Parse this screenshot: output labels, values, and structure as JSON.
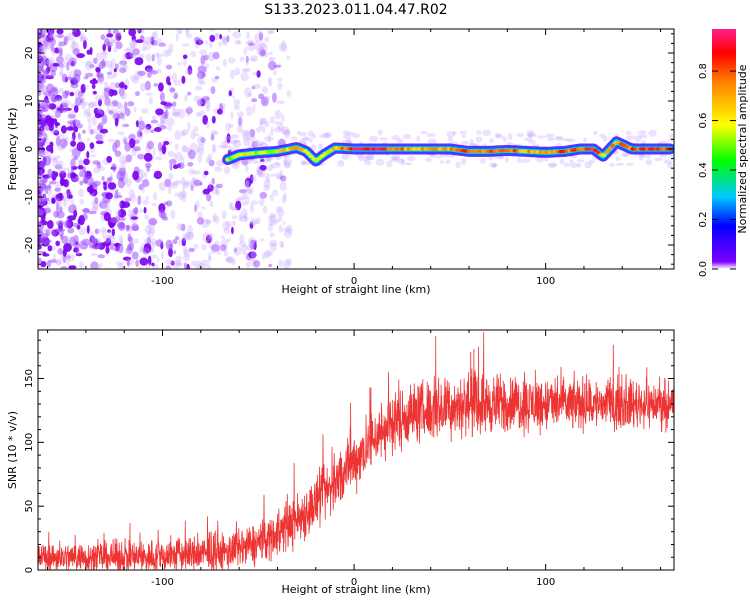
{
  "figure": {
    "title": "S133.2023.011.04.47.R02"
  },
  "chart_data": [
    {
      "type": "heatmap",
      "xlabel": "Height of straight line (km)",
      "ylabel": "Frequency (Hz)",
      "xlim": [
        -165,
        167
      ],
      "ylim": [
        -25,
        25
      ],
      "xticks": [
        -100,
        0,
        100
      ],
      "yticks": [
        -20,
        -10,
        0,
        10,
        20
      ],
      "grid": false,
      "colorbar": {
        "label": "Normalized spectral amplitude",
        "range": [
          0,
          0.97
        ],
        "ticks": [
          0.0,
          0.2,
          0.4,
          0.6,
          0.8
        ],
        "colormap": [
          "#ffffff",
          "#8000ff",
          "#0000ff",
          "#00c8ff",
          "#00ff00",
          "#ffff00",
          "#ff8000",
          "#ff0000",
          "#ff1f8a"
        ]
      },
      "noise_region_x": [
        -165,
        -40
      ],
      "signal_track": [
        {
          "x": -66,
          "y": -2.2,
          "amp": 0.55
        },
        {
          "x": -60,
          "y": -1.2,
          "amp": 0.6
        },
        {
          "x": -50,
          "y": -0.8,
          "amp": 0.55
        },
        {
          "x": -40,
          "y": -0.5,
          "amp": 0.6
        },
        {
          "x": -30,
          "y": 0.3,
          "amp": 0.7
        },
        {
          "x": -25,
          "y": -0.5,
          "amp": 0.6
        },
        {
          "x": -20,
          "y": -2.5,
          "amp": 0.6
        },
        {
          "x": -15,
          "y": -1.0,
          "amp": 0.55
        },
        {
          "x": -10,
          "y": 0.2,
          "amp": 0.7
        },
        {
          "x": 0,
          "y": 0.0,
          "amp": 0.9
        },
        {
          "x": 10,
          "y": 0.0,
          "amp": 0.95
        },
        {
          "x": 20,
          "y": 0.0,
          "amp": 0.8
        },
        {
          "x": 30,
          "y": 0.0,
          "amp": 0.7
        },
        {
          "x": 40,
          "y": 0.0,
          "amp": 0.75
        },
        {
          "x": 50,
          "y": 0.0,
          "amp": 0.7
        },
        {
          "x": 60,
          "y": -0.5,
          "amp": 0.85
        },
        {
          "x": 70,
          "y": -0.5,
          "amp": 0.75
        },
        {
          "x": 80,
          "y": -0.3,
          "amp": 0.8
        },
        {
          "x": 90,
          "y": -0.5,
          "amp": 0.7
        },
        {
          "x": 100,
          "y": -0.7,
          "amp": 0.75
        },
        {
          "x": 110,
          "y": -0.5,
          "amp": 0.8
        },
        {
          "x": 118,
          "y": 0.0,
          "amp": 0.75
        },
        {
          "x": 125,
          "y": 0.0,
          "amp": 0.9
        },
        {
          "x": 130,
          "y": -1.5,
          "amp": 0.6
        },
        {
          "x": 137,
          "y": 1.5,
          "amp": 0.75
        },
        {
          "x": 145,
          "y": 0.0,
          "amp": 0.8
        },
        {
          "x": 155,
          "y": 0.0,
          "amp": 0.85
        },
        {
          "x": 165,
          "y": 0.0,
          "amp": 0.8
        }
      ]
    },
    {
      "type": "line",
      "xlabel": "Height of straight line (km)",
      "ylabel": "SNR (10 * v/v)",
      "xlim": [
        -165,
        167
      ],
      "ylim": [
        0,
        188
      ],
      "xticks": [
        -100,
        0,
        100
      ],
      "yticks": [
        0,
        50,
        100,
        150
      ],
      "grid": false,
      "color": "#ee3333",
      "series": [
        {
          "x": [
            -165,
            -150,
            -130,
            -110,
            -90,
            -70,
            -60,
            -50,
            -40,
            -30,
            -20,
            -10,
            0,
            10,
            20,
            30,
            40,
            50,
            60,
            80,
            100,
            120,
            140,
            160,
            167
          ],
          "y": [
            10,
            10,
            10,
            10,
            12,
            13,
            16,
            21,
            29,
            39,
            52,
            68,
            85,
            103,
            115,
            123,
            125,
            128,
            130,
            130,
            130,
            130,
            130,
            130,
            130
          ]
        }
      ],
      "spread": {
        "x": [
          -165,
          -60,
          -20,
          20,
          60,
          167
        ],
        "y": [
          10,
          14,
          20,
          22,
          22,
          16
        ]
      }
    }
  ]
}
